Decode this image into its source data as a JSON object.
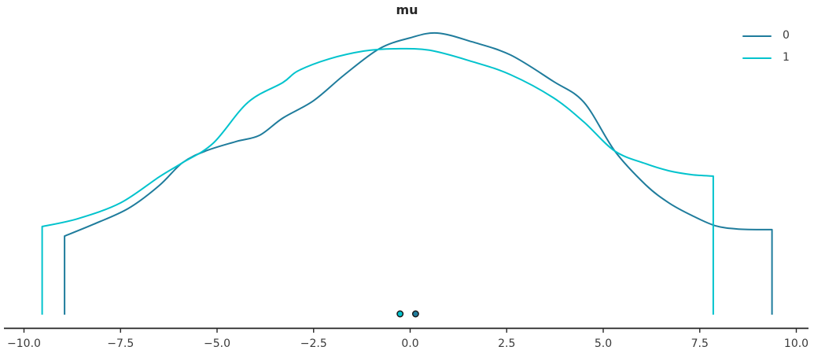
{
  "chart_data": {
    "type": "line",
    "subtype": "kde-density-comparison",
    "title": "mu",
    "xlabel": "",
    "ylabel": "",
    "xlim": [
      -10.5,
      10.5
    ],
    "ylim_density_normalized": [
      0,
      1.05
    ],
    "grid": false,
    "legend_position": "top-right",
    "x_ticks": {
      "values": [
        -10,
        -7.5,
        -5,
        -2.5,
        0,
        2.5,
        5,
        7.5,
        10
      ],
      "labels": [
        "−10.0",
        "−7.5",
        "−5.0",
        "−2.5",
        "0.0",
        "2.5",
        "5.0",
        "7.5",
        "10.0"
      ]
    },
    "density_note": "density values normalized so the peak of series 0 equals 1.0; curves are truncated KDEs with vertical drops to zero at their endpoints",
    "series": [
      {
        "name": "0",
        "color": "#1f7c9c",
        "x": [
          -8.95,
          -8.2,
          -7.3,
          -6.5,
          -5.9,
          -5.3,
          -4.5,
          -3.9,
          -3.3,
          -2.5,
          -1.7,
          -0.8,
          0.0,
          0.7,
          1.6,
          2.6,
          3.7,
          4.5,
          5.3,
          6.1,
          6.7,
          7.3,
          7.9,
          8.5,
          9.37
        ],
        "density": [
          0.279,
          0.321,
          0.377,
          0.458,
          0.539,
          0.581,
          0.615,
          0.637,
          0.698,
          0.76,
          0.852,
          0.944,
          0.983,
          1.0,
          0.969,
          0.922,
          0.829,
          0.754,
          0.581,
          0.461,
          0.397,
          0.352,
          0.316,
          0.304,
          0.302
        ],
        "point_estimate_x": 0.14
      },
      {
        "name": "1",
        "color": "#02c3cd",
        "x": [
          -9.53,
          -8.6,
          -7.5,
          -6.5,
          -5.9,
          -5.1,
          -4.2,
          -3.3,
          -2.9,
          -2.1,
          -1.2,
          -0.4,
          0.5,
          1.6,
          2.6,
          3.7,
          4.5,
          5.3,
          6.1,
          6.7,
          7.3,
          7.85
        ],
        "density": [
          0.313,
          0.341,
          0.397,
          0.489,
          0.539,
          0.609,
          0.754,
          0.824,
          0.866,
          0.908,
          0.936,
          0.944,
          0.939,
          0.899,
          0.852,
          0.771,
          0.684,
          0.581,
          0.536,
          0.511,
          0.497,
          0.492
        ],
        "point_estimate_x": -0.26
      }
    ],
    "point_estimate_marker": {
      "shape": "circle",
      "edge_color": "#1a1a1a"
    },
    "axis": {
      "spine_color": "#262626",
      "tick_label_color": "#3a3a3a"
    }
  }
}
